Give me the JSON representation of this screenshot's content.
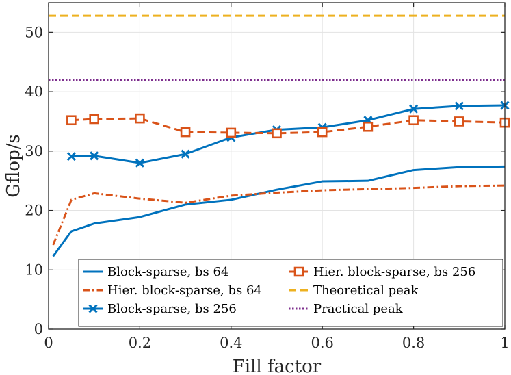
{
  "chart_data": {
    "type": "line",
    "title": "",
    "xlabel": "Fill factor",
    "ylabel": "Gflop/s",
    "xlim": [
      0,
      1
    ],
    "ylim": [
      0,
      55
    ],
    "grid": true,
    "x_ticks": [
      0,
      0.2,
      0.4,
      0.6,
      0.8,
      1
    ],
    "x_tick_labels": [
      "0",
      "0.2",
      "0.4",
      "0.6",
      "0.8",
      "1"
    ],
    "y_ticks": [
      0,
      10,
      20,
      30,
      40,
      50
    ],
    "y_tick_labels": [
      "0",
      "10",
      "20",
      "30",
      "40",
      "50"
    ],
    "legend_position": "bottom-right",
    "series": [
      {
        "name": "Block-sparse, bs 64",
        "color": "#0072bd",
        "style": "solid",
        "marker": "none",
        "x": [
          0.01,
          0.05,
          0.1,
          0.2,
          0.3,
          0.4,
          0.5,
          0.6,
          0.7,
          0.8,
          0.9,
          1.0
        ],
        "y": [
          12.3,
          16.5,
          17.8,
          18.9,
          21.0,
          21.8,
          23.5,
          24.9,
          25.0,
          26.8,
          27.3,
          27.4
        ]
      },
      {
        "name": "Hier. block-sparse, bs 64",
        "color": "#d95319",
        "style": "dashdot",
        "marker": "none",
        "x": [
          0.01,
          0.05,
          0.1,
          0.2,
          0.3,
          0.4,
          0.5,
          0.6,
          0.7,
          0.8,
          0.9,
          1.0
        ],
        "y": [
          14.2,
          21.8,
          22.9,
          22.0,
          21.3,
          22.5,
          23.0,
          23.4,
          23.6,
          23.8,
          24.1,
          24.2
        ]
      },
      {
        "name": "Block-sparse, bs 256",
        "color": "#0072bd",
        "style": "solid",
        "marker": "x",
        "x": [
          0.05,
          0.1,
          0.2,
          0.3,
          0.4,
          0.5,
          0.6,
          0.7,
          0.8,
          0.9,
          1.0
        ],
        "y": [
          29.1,
          29.2,
          28.0,
          29.5,
          32.3,
          33.6,
          34.0,
          35.2,
          37.1,
          37.6,
          37.7
        ]
      },
      {
        "name": "Hier. block-sparse, bs 256",
        "color": "#d95319",
        "style": "dashed",
        "marker": "square",
        "x": [
          0.05,
          0.1,
          0.2,
          0.3,
          0.4,
          0.5,
          0.6,
          0.7,
          0.8,
          0.9,
          1.0
        ],
        "y": [
          35.2,
          35.4,
          35.5,
          33.2,
          33.1,
          33.0,
          33.2,
          34.1,
          35.2,
          35.0,
          34.8
        ]
      },
      {
        "name": "Theoretical peak",
        "color": "#edb120",
        "style": "dashed",
        "marker": "none",
        "x": [
          0,
          1
        ],
        "y": [
          52.8,
          52.8
        ]
      },
      {
        "name": "Practical peak",
        "color": "#7e2f8e",
        "style": "dotted",
        "marker": "none",
        "x": [
          0,
          1
        ],
        "y": [
          42.0,
          42.0
        ]
      }
    ]
  }
}
